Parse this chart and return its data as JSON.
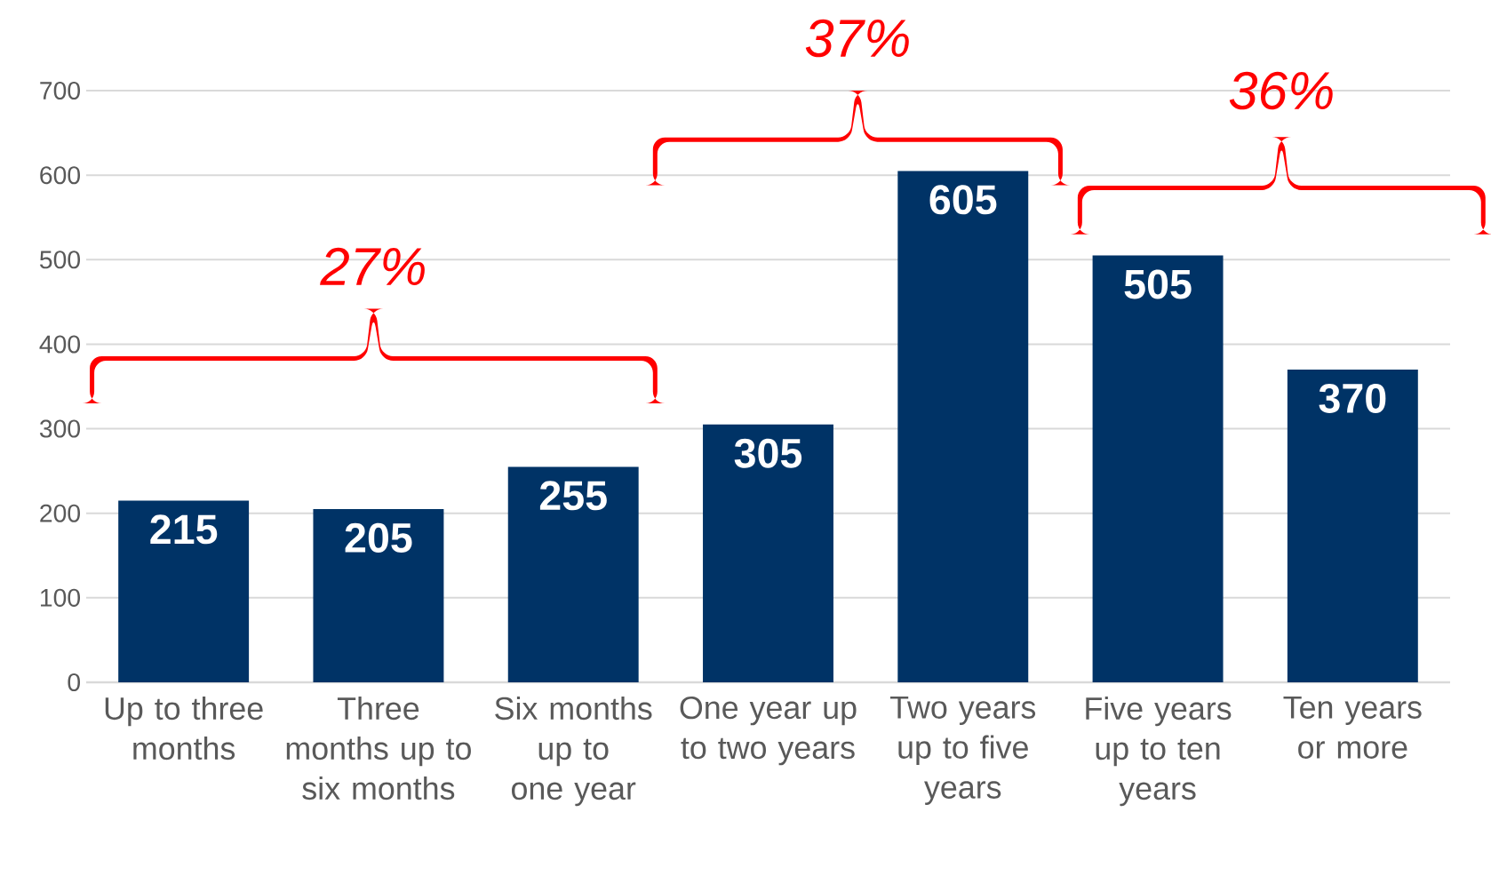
{
  "chart_data": {
    "type": "bar",
    "categories": [
      "Up to three months",
      "Three months up to six months",
      "Six months up to one year",
      "One year up to two years",
      "Two years up to five years",
      "Five years up to ten years",
      "Ten years or more"
    ],
    "values": [
      215,
      205,
      255,
      305,
      605,
      505,
      370
    ],
    "color": "#003366",
    "ylim": [
      0,
      700
    ],
    "yticks": [
      0,
      100,
      200,
      300,
      400,
      500,
      600,
      700
    ],
    "grid": "y",
    "data_labels": true,
    "annotations": [
      "27%",
      "37%",
      "36%"
    ]
  }
}
